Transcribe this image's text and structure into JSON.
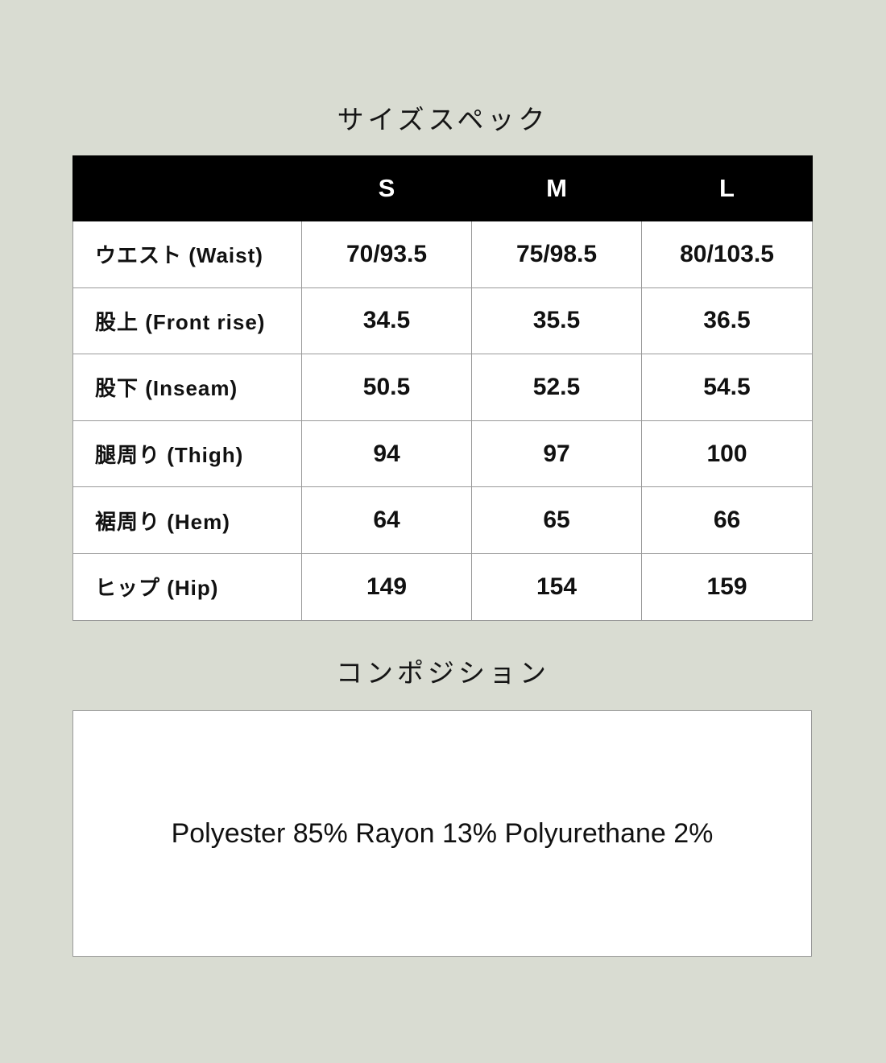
{
  "page": {
    "background_color": "#d9dcd2",
    "header_bg_color": "#000000",
    "header_text_color": "#ffffff",
    "border_color": "#999999"
  },
  "size_spec": {
    "title": "サイズスペック",
    "table": {
      "columns": [
        "S",
        "M",
        "L"
      ],
      "rows": [
        {
          "label": "ウエスト (Waist)",
          "values": [
            "70/93.5",
            "75/98.5",
            "80/103.5"
          ]
        },
        {
          "label": "股上 (Front rise)",
          "values": [
            "34.5",
            "35.5",
            "36.5"
          ]
        },
        {
          "label": "股下 (Inseam)",
          "values": [
            "50.5",
            "52.5",
            "54.5"
          ]
        },
        {
          "label": "腿周り (Thigh)",
          "values": [
            "94",
            "97",
            "100"
          ]
        },
        {
          "label": "裾周り (Hem)",
          "values": [
            "64",
            "65",
            "66"
          ]
        },
        {
          "label": "ヒップ (Hip)",
          "values": [
            "149",
            "154",
            "159"
          ]
        }
      ]
    }
  },
  "composition": {
    "title": "コンポジション",
    "text": "Polyester 85% Rayon 13% Polyurethane 2%"
  }
}
